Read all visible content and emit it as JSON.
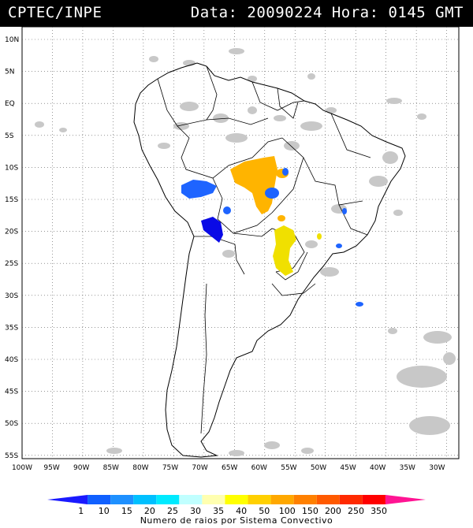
{
  "header": {
    "left": "CPTEC/INPE",
    "right": "Data: 20090224 Hora: 0145 GMT"
  },
  "map": {
    "lat_labels": [
      "10N",
      "5N",
      "EQ",
      "5S",
      "10S",
      "15S",
      "20S",
      "25S",
      "30S",
      "35S",
      "40S",
      "45S",
      "50S",
      "55S"
    ],
    "lon_labels": [
      "100W",
      "95W",
      "90W",
      "85W",
      "80W",
      "75W",
      "70W",
      "65W",
      "60W",
      "55W",
      "50W",
      "45W",
      "40W",
      "35W",
      "30W"
    ],
    "cloud_color": "#c8c8c8",
    "outline_color": "#000000"
  },
  "colorbar": {
    "labels": [
      "1",
      "10",
      "15",
      "20",
      "25",
      "30",
      "35",
      "40",
      "50",
      "100",
      "150",
      "200",
      "250",
      "350"
    ],
    "colors": [
      "#1a1aff",
      "#1060ff",
      "#1e90ff",
      "#00c0ff",
      "#00eaff",
      "#c0ffff",
      "#ffffb0",
      "#ffff00",
      "#ffd000",
      "#ffa800",
      "#ff8000",
      "#ff5a00",
      "#ff2a00",
      "#ff0000",
      "#ff1493"
    ],
    "caption": "Numero de raios por Sistema Convectivo"
  },
  "convective_systems": [
    {
      "name": "system-orange-mato-grosso",
      "value_class": "50"
    },
    {
      "name": "system-blue-peru",
      "value_class": "10"
    },
    {
      "name": "system-darkblue-bolivia",
      "value_class": "1"
    },
    {
      "name": "system-yellow-paraguay",
      "value_class": "40"
    }
  ]
}
